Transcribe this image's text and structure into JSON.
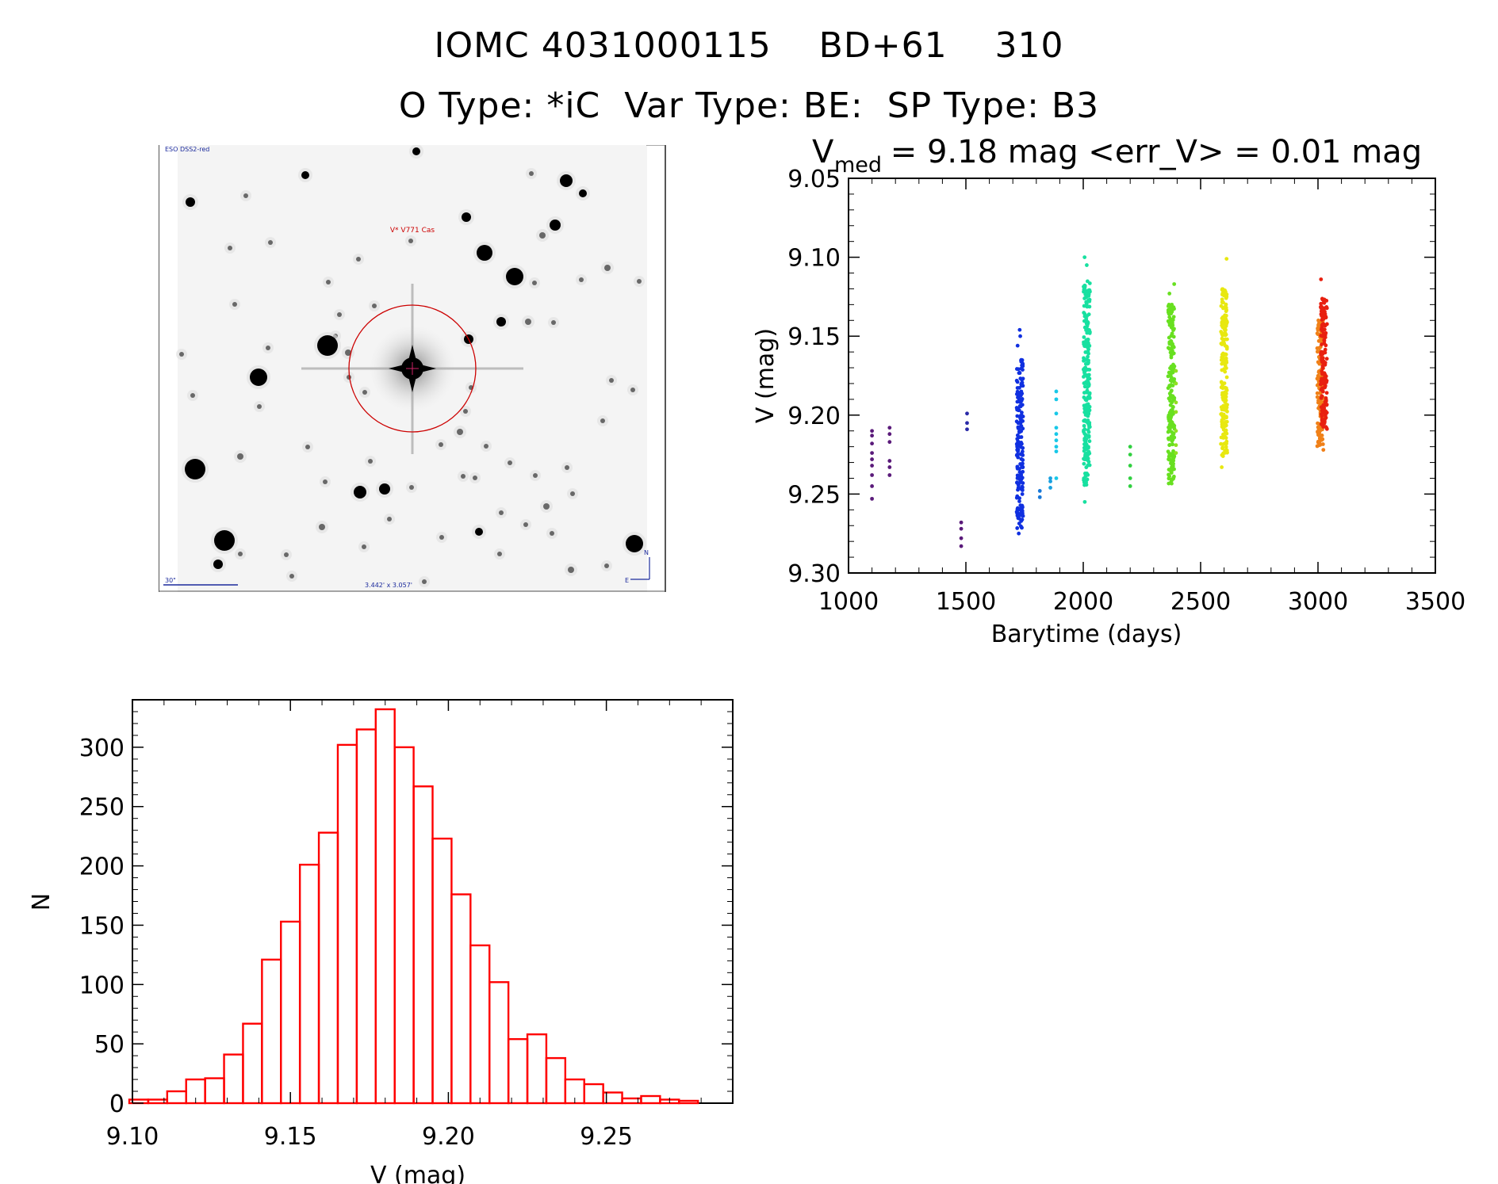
{
  "header": {
    "title_line1": "IOMC 4031000115    BD+61    310",
    "title_line2": "O Type: *iC  Var Type: BE:  SP Type: B3"
  },
  "finder_chart": {
    "survey_label": "ESO DSS2-red",
    "target_label": "V* V771 Cas",
    "scale_label": "30\"",
    "fov_label": "3.442' x 3.057'",
    "compass_north": "N",
    "compass_east": "E",
    "colors": {
      "circle": "#cc0000",
      "labels": "#1b2a9c",
      "target_label": "#cc0000"
    }
  },
  "chart_data": [
    {
      "type": "scatter",
      "title_main": "V",
      "title_sub": "med",
      "title_rest": " = 9.18 mag <err_V> = 0.01 mag",
      "xlabel": "Barytime (days)",
      "ylabel": "V (mag)",
      "xlim": [
        1000,
        3500
      ],
      "ylim": [
        9.3,
        9.05
      ],
      "y_inverted": true,
      "xticks": [
        1000,
        1500,
        2000,
        2500,
        3000,
        3500
      ],
      "xtick_labels": [
        "1000",
        "1500",
        "2000",
        "2500",
        "3000",
        "3500"
      ],
      "yticks": [
        9.05,
        9.1,
        9.15,
        9.2,
        9.25,
        9.3
      ],
      "ytick_labels": [
        "9.05",
        "9.10",
        "9.15",
        "9.20",
        "9.25",
        "9.30"
      ],
      "color_scale": "rainbow by time",
      "groups": [
        {
          "x": 1100,
          "color": "#5a1a7a",
          "values": [
            9.21,
            9.213,
            9.218,
            9.224,
            9.228,
            9.232,
            9.238,
            9.245,
            9.253
          ]
        },
        {
          "x": 1175,
          "color": "#5a1a7a",
          "values": [
            9.208,
            9.212,
            9.217,
            9.229,
            9.233,
            9.238
          ]
        },
        {
          "x": 1480,
          "color": "#5a1a7a",
          "values": [
            9.268,
            9.272,
            9.278,
            9.283
          ]
        },
        {
          "x": 1505,
          "color": "#2a2aa8",
          "values": [
            9.199,
            9.205,
            9.209
          ]
        },
        {
          "x": 1730,
          "color": "#1030e0",
          "band": [
            9.165,
            9.272
          ],
          "extra": [
            9.146,
            9.15,
            9.156,
            9.275
          ]
        },
        {
          "x": 1815,
          "color": "#1878d8",
          "values": [
            9.248,
            9.252
          ]
        },
        {
          "x": 1860,
          "color": "#18a0e0",
          "values": [
            9.24,
            9.242,
            9.246
          ]
        },
        {
          "x": 1885,
          "color": "#18c8e8",
          "values": [
            9.185,
            9.19,
            9.199,
            9.208,
            9.212,
            9.216,
            9.22,
            9.223,
            9.24
          ]
        },
        {
          "x": 2015,
          "color": "#18e0a0",
          "band": [
            9.115,
            9.245
          ],
          "extra": [
            9.1,
            9.105,
            9.255
          ]
        },
        {
          "x": 2200,
          "color": "#30d040",
          "values": [
            9.22,
            9.225,
            9.232,
            9.24,
            9.245
          ]
        },
        {
          "x": 2375,
          "color": "#68e020",
          "band": [
            9.13,
            9.245
          ],
          "extra": [
            9.117,
            9.123
          ]
        },
        {
          "x": 2395,
          "color": "#90e020",
          "values": [
            9.172,
            9.18,
            9.192,
            9.198,
            9.21,
            9.219,
            9.224
          ]
        },
        {
          "x": 2600,
          "color": "#e8e810",
          "band": [
            9.12,
            9.226
          ],
          "extra": [
            9.101,
            9.233
          ]
        },
        {
          "x": 3010,
          "color": "#f08018",
          "band": [
            9.14,
            9.22
          ],
          "extra": [
            9.222
          ]
        },
        {
          "x": 3025,
          "color": "#e82010",
          "band": [
            9.125,
            9.21
          ],
          "extra": [
            9.114
          ]
        }
      ]
    },
    {
      "type": "bar",
      "subtype": "histogram",
      "xlabel": "V (mag)",
      "ylabel": "N",
      "xlim": [
        9.1,
        9.29
      ],
      "ylim": [
        0,
        340
      ],
      "xticks": [
        9.1,
        9.15,
        9.2,
        9.25
      ],
      "xtick_labels": [
        "9.10",
        "9.15",
        "9.20",
        "9.25"
      ],
      "yticks": [
        0,
        50,
        100,
        150,
        200,
        250,
        300
      ],
      "ytick_labels": [
        "0",
        "50",
        "100",
        "150",
        "200",
        "250",
        "300"
      ],
      "bin_start": 9.099,
      "bin_width": 0.006,
      "values": [
        3,
        3,
        10,
        20,
        21,
        41,
        67,
        121,
        153,
        201,
        228,
        302,
        315,
        332,
        300,
        267,
        223,
        176,
        133,
        102,
        54,
        58,
        38,
        20,
        16,
        9,
        4,
        6,
        3,
        2
      ],
      "color": "#ff0000"
    }
  ]
}
